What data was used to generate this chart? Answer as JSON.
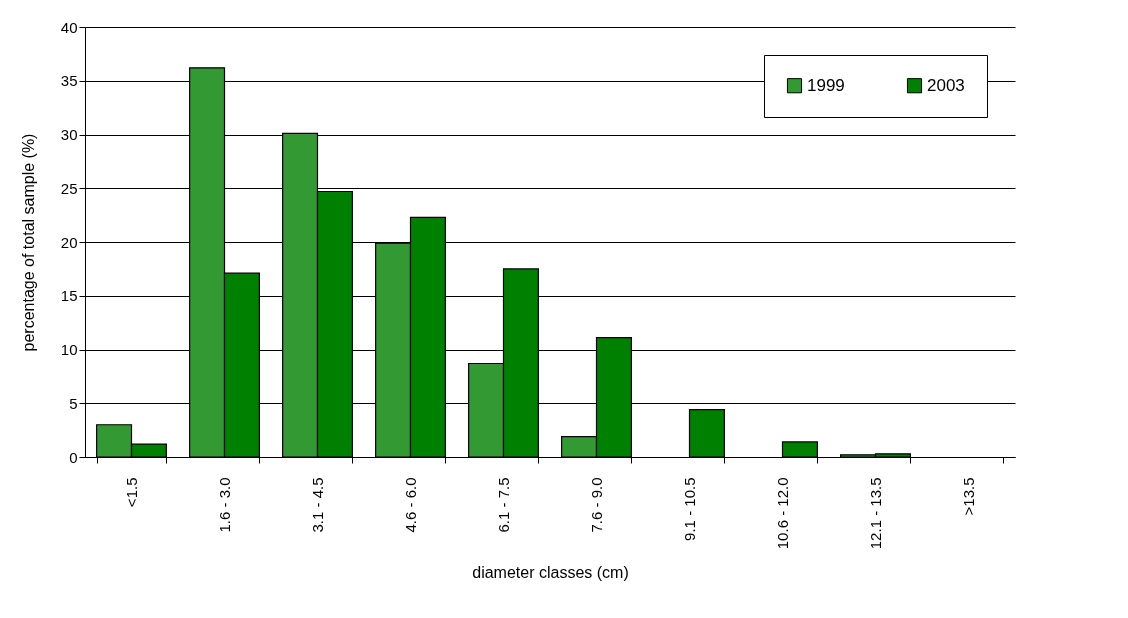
{
  "chart_data": {
    "type": "bar",
    "xlabel": "diameter classes (cm)",
    "ylabel": "percentage of total sample (%)",
    "categories": [
      "<1.5",
      "1.6 - 3.0",
      "3.1 - 4.5",
      "4.6 - 6.0",
      "6.1 - 7.5",
      "7.6 - 9.0",
      "9.1 - 10.5",
      "10.6 - 12.0",
      "12.1 - 13.5",
      ">13.5"
    ],
    "series": [
      {
        "name": "1999",
        "color": "#339933",
        "values": [
          3.0,
          36.2,
          30.1,
          19.9,
          8.7,
          1.9,
          null,
          null,
          0.2,
          null
        ]
      },
      {
        "name": "2003",
        "color": "#008000",
        "values": [
          1.2,
          17.1,
          24.7,
          22.3,
          17.5,
          11.1,
          4.4,
          1.4,
          0.3,
          null
        ]
      }
    ],
    "ylim": [
      0,
      40
    ],
    "yticks": [
      0,
      5,
      10,
      15,
      20,
      25,
      30,
      35,
      40
    ],
    "grid": "y",
    "legend": "top right"
  }
}
